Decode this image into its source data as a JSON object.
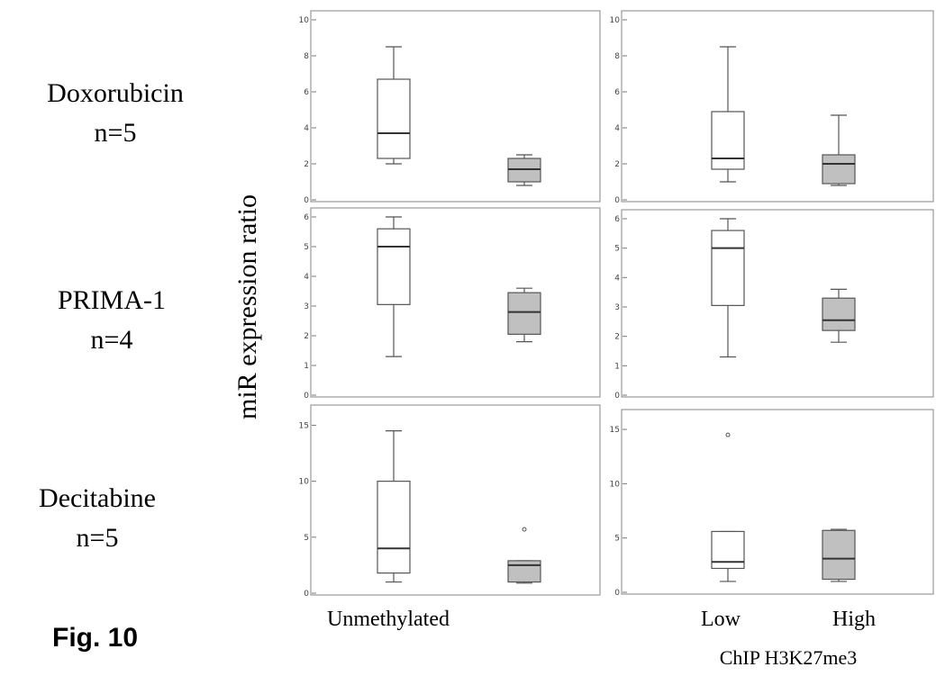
{
  "figure_label": "Fig. 10",
  "y_axis_label": "miR expression ratio",
  "rows": [
    {
      "drug": "Doxorubicin",
      "n": "n=5"
    },
    {
      "drug": "PRIMA-1",
      "n": "n=4"
    },
    {
      "drug": "Decitabine",
      "n": "n=5"
    }
  ],
  "x_labels": {
    "left_panel": [
      "Unmethylated"
    ],
    "right_panel": [
      "Low",
      "High"
    ],
    "right_panel_title": "ChIP H3K27me3"
  },
  "colors": {
    "box_low": "#ffffff",
    "box_high": "#c0c0c0",
    "frame": "#999999",
    "line": "#555555"
  },
  "chart_data": [
    {
      "type": "box",
      "row": "Doxorubicin",
      "column": "left",
      "ylim": [
        0,
        10
      ],
      "yticks": [
        0,
        2,
        4,
        6,
        8,
        10
      ],
      "groups": [
        {
          "name": "Unmethylated",
          "min": 2.0,
          "q1": 2.3,
          "median": 3.7,
          "q3": 6.7,
          "max": 8.5,
          "outliers": []
        },
        {
          "name": "",
          "min": 0.8,
          "q1": 1.0,
          "median": 1.7,
          "q3": 2.3,
          "max": 2.5,
          "outliers": []
        }
      ]
    },
    {
      "type": "box",
      "row": "Doxorubicin",
      "column": "right",
      "ylim": [
        0,
        10
      ],
      "yticks": [
        0,
        2,
        4,
        6,
        8,
        10
      ],
      "groups": [
        {
          "name": "Low",
          "min": 1.0,
          "q1": 1.7,
          "median": 2.3,
          "q3": 4.9,
          "max": 8.5,
          "outliers": []
        },
        {
          "name": "High",
          "min": 0.8,
          "q1": 0.9,
          "median": 2.0,
          "q3": 2.5,
          "max": 4.7,
          "outliers": []
        }
      ]
    },
    {
      "type": "box",
      "row": "PRIMA-1",
      "column": "left",
      "ylim": [
        0,
        6
      ],
      "yticks": [
        0,
        1,
        2,
        3,
        4,
        5,
        6
      ],
      "groups": [
        {
          "name": "Unmethylated",
          "min": 1.3,
          "q1": 3.05,
          "median": 5.0,
          "q3": 5.6,
          "max": 6.0,
          "outliers": []
        },
        {
          "name": "",
          "min": 1.8,
          "q1": 2.05,
          "median": 2.8,
          "q3": 3.45,
          "max": 3.6,
          "outliers": []
        }
      ]
    },
    {
      "type": "box",
      "row": "PRIMA-1",
      "column": "right",
      "ylim": [
        0,
        6
      ],
      "yticks": [
        0,
        1,
        2,
        3,
        4,
        5,
        6
      ],
      "groups": [
        {
          "name": "Low",
          "min": 1.3,
          "q1": 3.05,
          "median": 5.0,
          "q3": 5.6,
          "max": 6.0,
          "outliers": []
        },
        {
          "name": "High",
          "min": 1.8,
          "q1": 2.2,
          "median": 2.55,
          "q3": 3.3,
          "max": 3.6,
          "outliers": []
        }
      ]
    },
    {
      "type": "box",
      "row": "Decitabine",
      "column": "left",
      "ylim": [
        0,
        16
      ],
      "yticks": [
        0,
        5,
        10,
        15
      ],
      "groups": [
        {
          "name": "Unmethylated",
          "min": 1.0,
          "q1": 1.8,
          "median": 4.0,
          "q3": 10.0,
          "max": 14.5,
          "outliers": []
        },
        {
          "name": "",
          "min": 0.9,
          "q1": 1.0,
          "median": 2.5,
          "q3": 2.9,
          "max": 2.9,
          "outliers": [
            5.7
          ]
        }
      ]
    },
    {
      "type": "box",
      "row": "Decitabine",
      "column": "right",
      "ylim": [
        0,
        16
      ],
      "yticks": [
        0,
        5,
        10,
        15
      ],
      "groups": [
        {
          "name": "Low",
          "min": 1.0,
          "q1": 2.2,
          "median": 2.8,
          "q3": 5.6,
          "max": 5.6,
          "outliers": [
            14.5
          ]
        },
        {
          "name": "High",
          "min": 1.0,
          "q1": 1.2,
          "median": 3.1,
          "q3": 5.7,
          "max": 5.8,
          "outliers": []
        }
      ]
    }
  ]
}
